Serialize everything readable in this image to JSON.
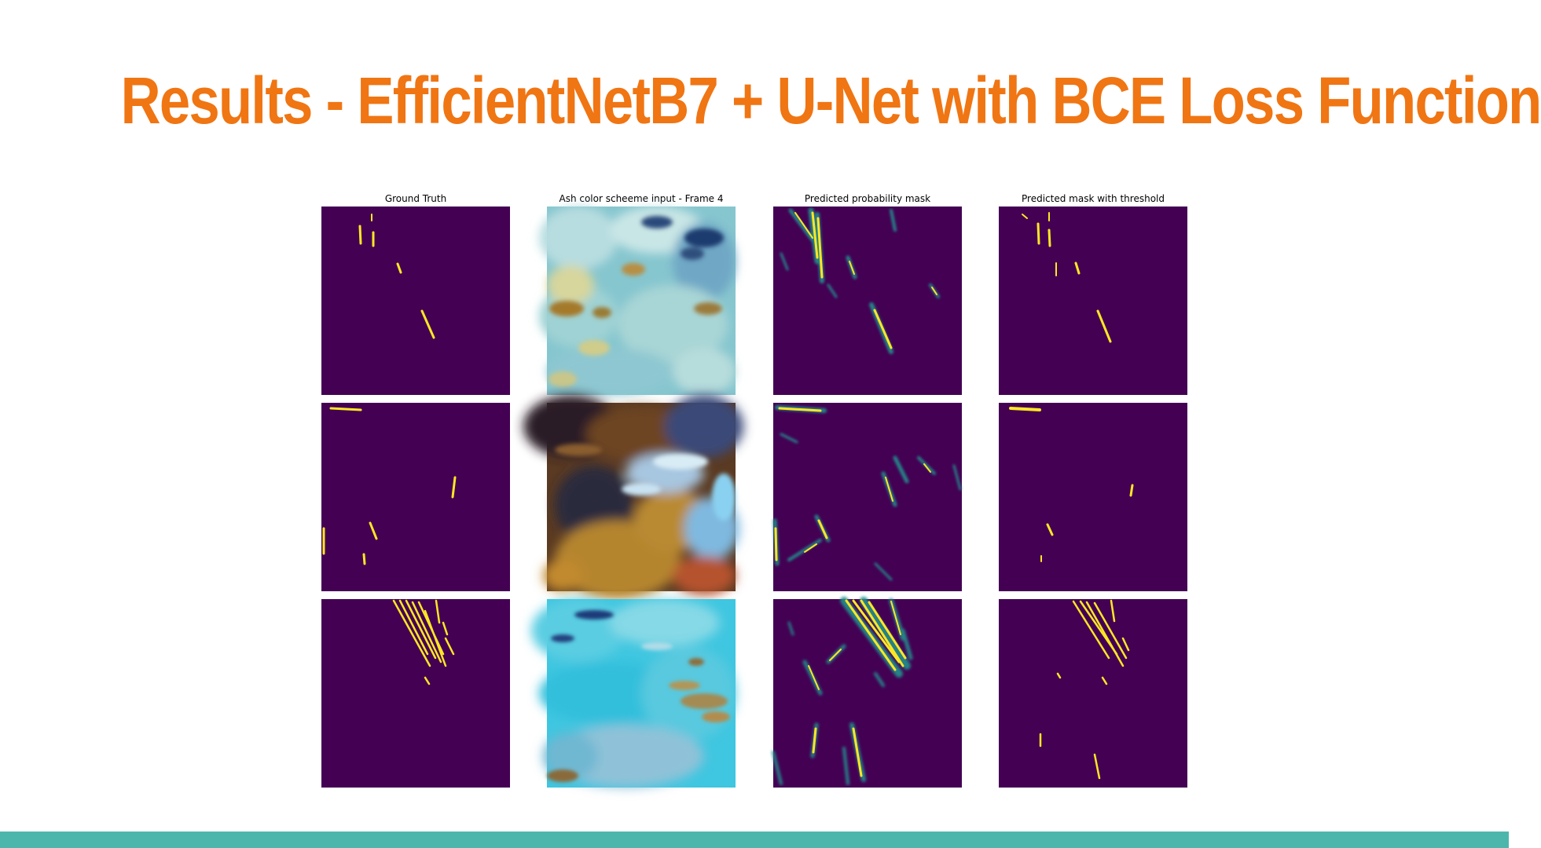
{
  "slide": {
    "title": "Results - EfficientNetB7 + U-Net with BCE Loss Function",
    "title_color": "#f07513",
    "bar_color": "#4db6ac"
  },
  "figure": {
    "column_titles": [
      "Ground Truth",
      "Ash color scheeme input - Frame 4",
      "Predicted probability mask",
      "Predicted mask with threshold"
    ],
    "rows": 3,
    "mask_background": "#440154",
    "mask_foreground": "#fde725"
  }
}
